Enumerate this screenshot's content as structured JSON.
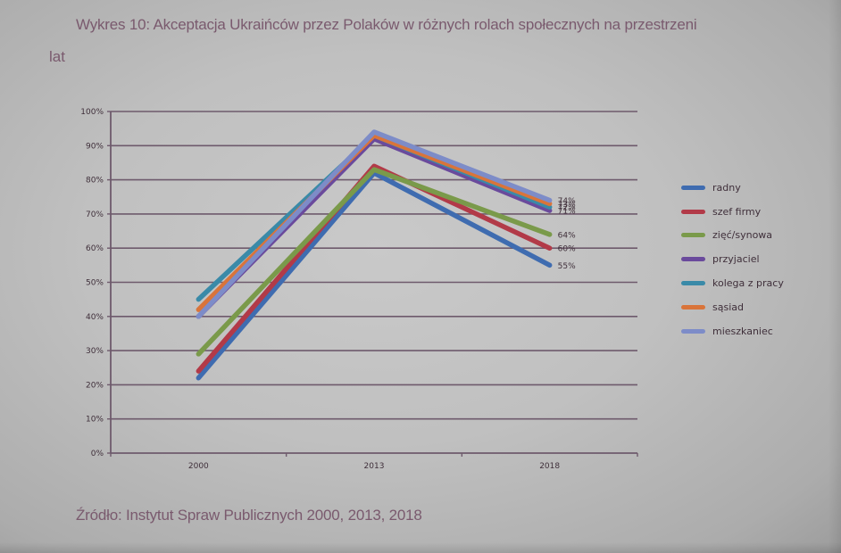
{
  "header": {
    "title_line1": "Wykres 10: Akceptacja Ukraińców przez Polaków w różnych rolach społecznych na przestrzeni",
    "title_line2": "lat"
  },
  "footer": {
    "source": "Źródło: Instytut Spraw Publicznych 2000, 2013, 2018"
  },
  "chart_data": {
    "type": "line",
    "title": "Wykres 10: Akceptacja Ukraińców przez Polaków w różnych rolach społecznych na przestrzeni lat",
    "xlabel": "",
    "ylabel": "",
    "x": [
      "2000",
      "2013",
      "2018"
    ],
    "ylim": [
      0,
      100
    ],
    "yticks": [
      "0%",
      "10%",
      "20%",
      "30%",
      "40%",
      "50%",
      "60%",
      "70%",
      "80%",
      "90%",
      "100%"
    ],
    "grid": true,
    "legend_position": "right",
    "series": [
      {
        "name": "radny",
        "color": "#3f6cb0",
        "values": [
          22,
          82,
          55
        ],
        "end_label": "55%"
      },
      {
        "name": "szef firmy",
        "color": "#b23a48",
        "values": [
          24,
          84,
          60
        ],
        "end_label": "60%"
      },
      {
        "name": "zięć/synowa",
        "color": "#7a9a4a",
        "values": [
          29,
          83,
          64
        ],
        "end_label": "64%"
      },
      {
        "name": "przyjaciel",
        "color": "#6a4a9c",
        "values": [
          40,
          92,
          71
        ],
        "end_label": "71%"
      },
      {
        "name": "kolega z pracy",
        "color": "#3a8aa8",
        "values": [
          45,
          93,
          72
        ],
        "end_label": "72%"
      },
      {
        "name": "sąsiad",
        "color": "#d9743a",
        "values": [
          42,
          93,
          73
        ],
        "end_label": "73%"
      },
      {
        "name": "mieszkaniec",
        "color": "#7d8cc8",
        "values": [
          40,
          94,
          74
        ],
        "end_label": "74%"
      }
    ]
  }
}
